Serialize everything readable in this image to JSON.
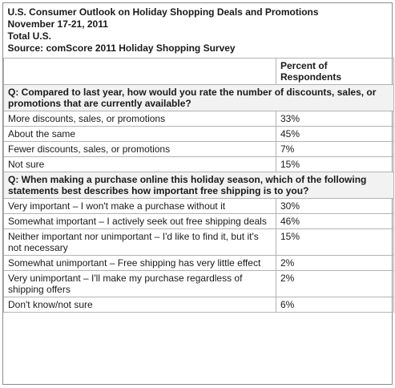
{
  "header": {
    "title": "U.S. Consumer Outlook on Holiday Shopping Deals and Promotions",
    "dates": "November 17-21, 2011",
    "scope": "Total U.S.",
    "source": "Source: comScore 2011 Holiday Shopping Survey"
  },
  "column_header": "Percent of Respondents",
  "q1": {
    "question": "Q: Compared to last year, how would you rate the number of discounts, sales, or promotions that are currently available?",
    "rows": [
      {
        "label": "More discounts, sales, or promotions",
        "value": "33%"
      },
      {
        "label": "About the same",
        "value": "45%"
      },
      {
        "label": "Fewer discounts, sales, or promotions",
        "value": "7%"
      },
      {
        "label": "Not sure",
        "value": "15%"
      }
    ]
  },
  "q2": {
    "question": "Q: When making a purchase online this holiday season, which of the following statements best describes how important free shipping is to you?",
    "rows": [
      {
        "label": "Very important – I won't make a purchase without it",
        "value": "30%"
      },
      {
        "label": "Somewhat important – I actively seek out free shipping deals",
        "value": "46%"
      },
      {
        "label": "Neither important nor unimportant – I'd like to find it, but it's not necessary",
        "value": "15%"
      },
      {
        "label": "Somewhat unimportant – Free shipping has very little effect",
        "value": "2%"
      },
      {
        "label": "Very unimportant – I'll make my purchase regardless of shipping offers",
        "value": "2%"
      },
      {
        "label": "Don't know/not sure",
        "value": "6%"
      }
    ]
  }
}
